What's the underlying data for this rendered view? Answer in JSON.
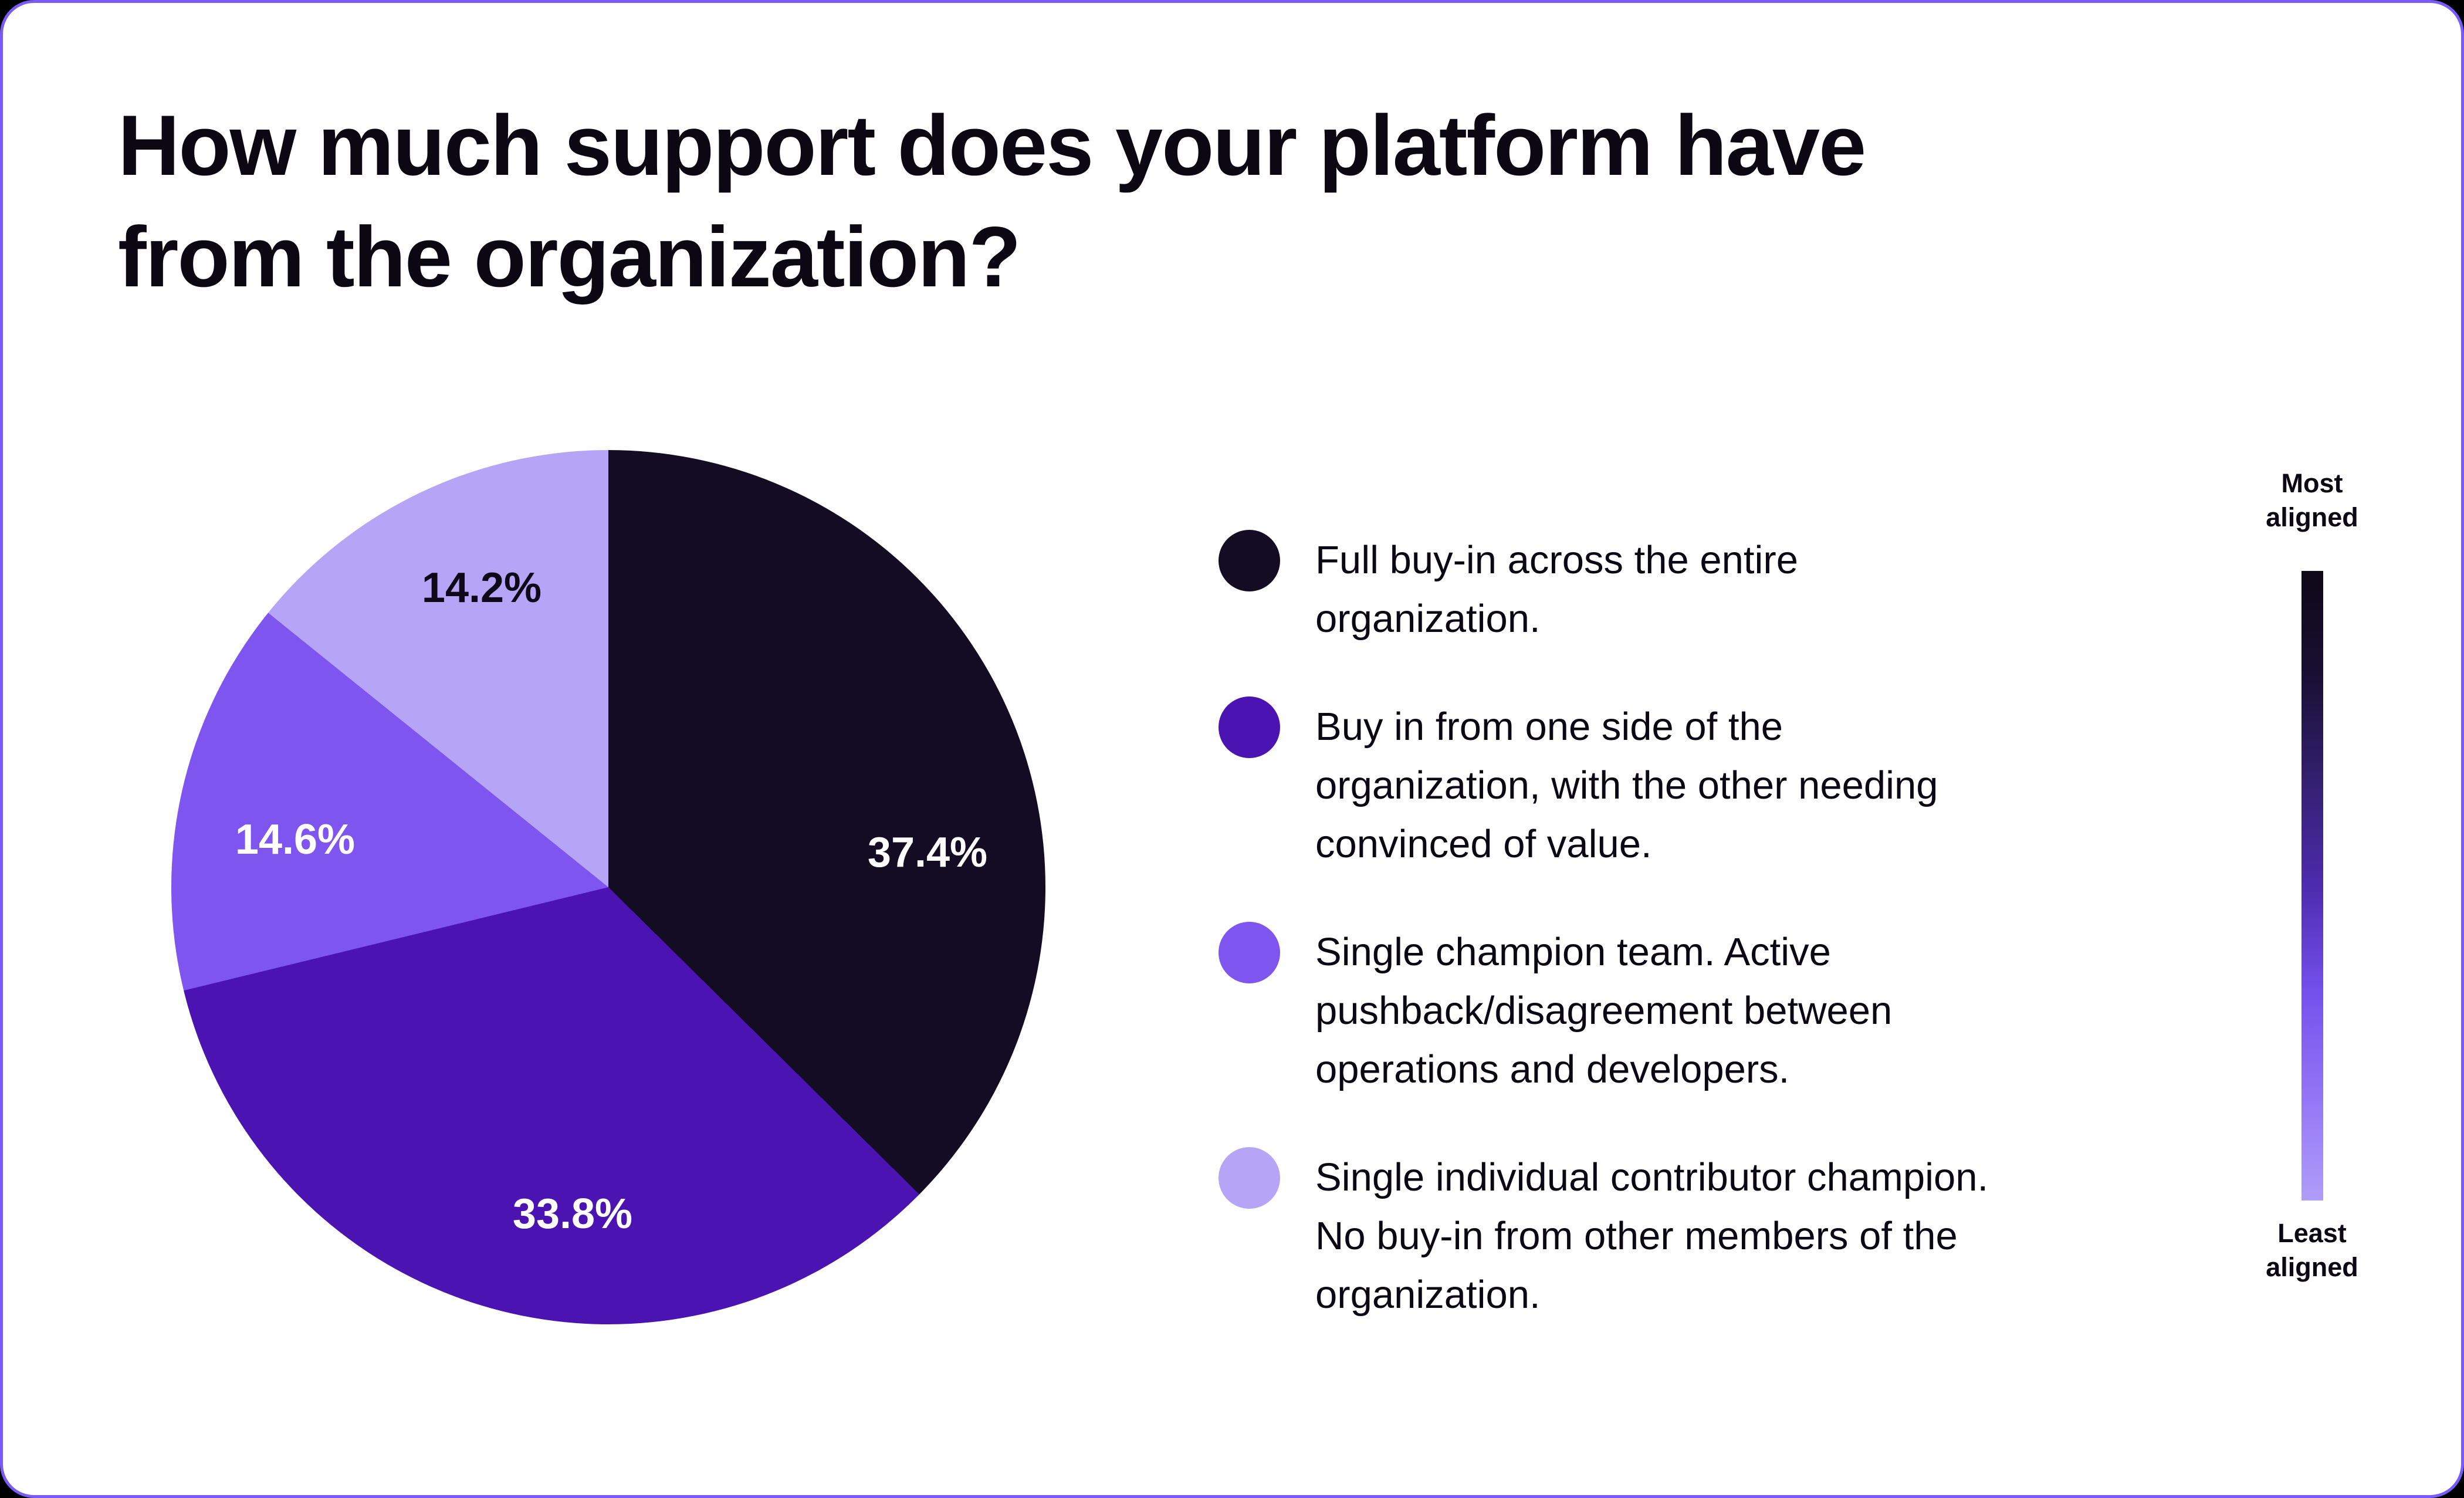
{
  "title": "How much support does your platform have\nfrom the organization?",
  "chart_data": {
    "type": "pie",
    "title": "How much support does your platform have from the organization?",
    "start_angle_deg": 0,
    "direction": "clockwise",
    "total": 100,
    "slices": [
      {
        "label": "Full buy-in across the entire\norganization.",
        "value": 37.4,
        "display_value": "37.4%",
        "color": "#130C22",
        "value_label_color": "#FFFFFF"
      },
      {
        "label": "Buy in from one side of the\norganization, with the other needing\nconvinced of value.",
        "value": 33.8,
        "display_value": "33.8%",
        "color": "#4A13B2",
        "value_label_color": "#FFFFFF"
      },
      {
        "label": "Single champion team. Active\npushback/disagreement between\noperations and developers.",
        "value": 14.6,
        "display_value": "14.6%",
        "color": "#7F55F0",
        "value_label_color": "#FFFFFF"
      },
      {
        "label": "Single individual contributor champion.\nNo buy-in from other members of the\norganization.",
        "value": 14.2,
        "display_value": "14.2%",
        "color": "#B6A5F7",
        "value_label_color": "#0D0918"
      }
    ],
    "legend_position": "right",
    "alignment_scale": {
      "top_label": "Most\naligned",
      "bottom_label": "Least\naligned",
      "gradient": [
        "#0E0817",
        "#190F33",
        "#332070",
        "#4D2BAD",
        "#7450EC",
        "#9375F5",
        "#AF9DF9"
      ]
    }
  },
  "colors": {
    "page_background": "#000000",
    "card_background": "#FFFFFF",
    "card_border": "#7A5AF8",
    "title_text": "#0B0713",
    "legend_text": "#0B0713"
  }
}
